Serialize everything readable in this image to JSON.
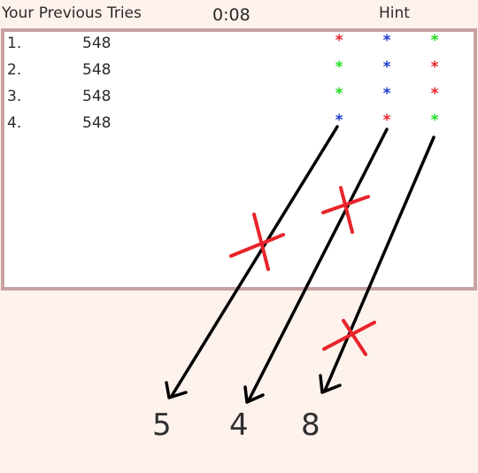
{
  "header": {
    "title": "Your Previous Tries",
    "timer": "0:08",
    "hint_label": "Hint"
  },
  "tries": [
    {
      "index": "1.",
      "guess": "548",
      "hints": [
        {
          "symbol": "*",
          "color": "#e8242b"
        },
        {
          "symbol": "*",
          "color": "#1f3ad1"
        },
        {
          "symbol": "*",
          "color": "#22e022"
        }
      ]
    },
    {
      "index": "2.",
      "guess": "548",
      "hints": [
        {
          "symbol": "*",
          "color": "#22e022"
        },
        {
          "symbol": "*",
          "color": "#1f3ad1"
        },
        {
          "symbol": "*",
          "color": "#e8242b"
        }
      ]
    },
    {
      "index": "3.",
      "guess": "548",
      "hints": [
        {
          "symbol": "*",
          "color": "#22e022"
        },
        {
          "symbol": "*",
          "color": "#1f3ad1"
        },
        {
          "symbol": "*",
          "color": "#e8242b"
        }
      ]
    },
    {
      "index": "4.",
      "guess": "548",
      "hints": [
        {
          "symbol": "*",
          "color": "#1f3ad1"
        },
        {
          "symbol": "*",
          "color": "#e8242b"
        },
        {
          "symbol": "*",
          "color": "#22e022"
        }
      ]
    }
  ],
  "answer_digits": [
    "5",
    "4",
    "8"
  ],
  "colors": {
    "background": "#fef2ec",
    "panel_border": "#c8a1a1",
    "arrow": "#000000",
    "cross": "#e8242b"
  }
}
